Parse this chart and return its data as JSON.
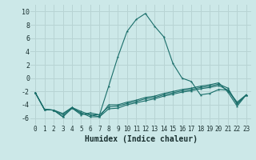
{
  "xlabel": "Humidex (Indice chaleur)",
  "background_color": "#cce8e8",
  "grid_color": "#b8d4d4",
  "line_color": "#1a6e6a",
  "xlim": [
    -0.5,
    23.5
  ],
  "ylim": [
    -7,
    11
  ],
  "xticks": [
    0,
    1,
    2,
    3,
    4,
    5,
    6,
    7,
    8,
    9,
    10,
    11,
    12,
    13,
    14,
    15,
    16,
    17,
    18,
    19,
    20,
    21,
    22,
    23
  ],
  "yticks": [
    -6,
    -4,
    -2,
    0,
    2,
    4,
    6,
    8,
    10
  ],
  "s1_x": [
    0,
    1,
    2,
    3,
    4,
    5,
    6,
    7,
    8,
    9,
    10,
    11,
    12,
    13,
    14,
    15,
    16,
    17,
    18,
    19,
    20,
    21,
    22,
    23
  ],
  "s1_y": [
    -2.2,
    -4.7,
    -4.8,
    -5.8,
    -4.5,
    -5.5,
    -5.2,
    -5.5,
    -1.2,
    3.2,
    7.0,
    8.8,
    9.7,
    7.8,
    6.2,
    2.2,
    0.0,
    -0.5,
    -2.5,
    -2.3,
    -1.7,
    -1.8,
    -3.8,
    -2.5
  ],
  "s2_x": [
    0,
    1,
    2,
    3,
    4,
    5,
    6,
    7,
    8,
    9,
    10,
    11,
    12,
    13,
    14,
    15,
    16,
    17,
    18,
    19,
    20,
    21,
    22,
    23
  ],
  "s2_y": [
    -2.2,
    -4.7,
    -4.8,
    -5.8,
    -4.5,
    -5.2,
    -5.8,
    -5.8,
    -4.6,
    -4.5,
    -4.0,
    -3.7,
    -3.4,
    -3.1,
    -2.7,
    -2.4,
    -2.1,
    -1.9,
    -1.6,
    -1.4,
    -1.1,
    -1.8,
    -3.6,
    -2.5
  ],
  "s3_x": [
    0,
    1,
    2,
    3,
    4,
    5,
    6,
    7,
    8,
    9,
    10,
    11,
    12,
    13,
    14,
    15,
    16,
    17,
    18,
    19,
    20,
    21,
    22,
    23
  ],
  "s3_y": [
    -2.2,
    -4.7,
    -4.8,
    -5.3,
    -4.4,
    -5.0,
    -5.5,
    -5.5,
    -4.3,
    -4.2,
    -3.8,
    -3.5,
    -3.1,
    -2.9,
    -2.5,
    -2.2,
    -1.9,
    -1.7,
    -1.4,
    -1.2,
    -0.9,
    -1.5,
    -3.9,
    -2.5
  ],
  "s4_x": [
    0,
    1,
    2,
    3,
    4,
    5,
    6,
    7,
    8,
    9,
    10,
    11,
    12,
    13,
    14,
    15,
    16,
    17,
    18,
    19,
    20,
    21,
    22,
    23
  ],
  "s4_y": [
    -2.2,
    -4.7,
    -4.8,
    -5.5,
    -4.4,
    -5.3,
    -5.5,
    -5.8,
    -4.0,
    -4.0,
    -3.6,
    -3.3,
    -2.9,
    -2.7,
    -2.3,
    -2.0,
    -1.7,
    -1.5,
    -1.2,
    -1.0,
    -0.7,
    -2.1,
    -4.2,
    -2.5
  ],
  "xlabel_fontsize": 7,
  "tick_fontsize": 5.5
}
